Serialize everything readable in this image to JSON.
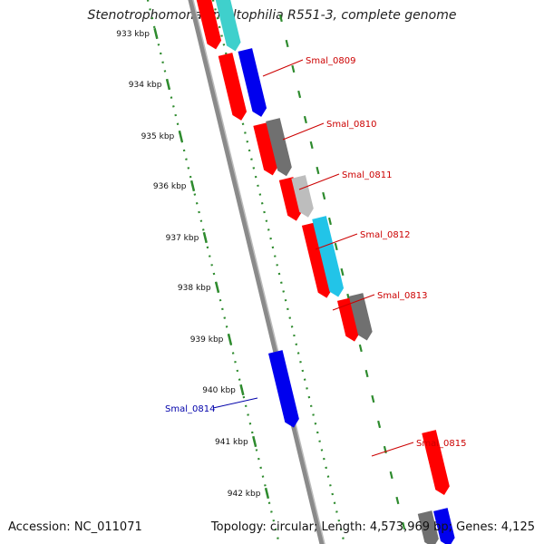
{
  "title": "Stenotrophomonas maltophilia R551-3, complete genome",
  "accession": "Accession: NC_011071",
  "summary": "Topology: circular; Length: 4,573,969 bp; Genes: 4,125",
  "ruler": {
    "ticks": [
      "933 kbp",
      "934 kbp",
      "935 kbp",
      "936 kbp",
      "937 kbp",
      "938 kbp",
      "939 kbp",
      "940 kbp",
      "941 kbp",
      "942 kbp"
    ],
    "tick_color": "#2e8b2e"
  },
  "colors": {
    "red": "#ff0000",
    "blue": "#0000ee",
    "dark_gray": "#707070",
    "light_gray": "#bdbdbd",
    "cyan": "#22c4e8",
    "teal": "#3fd0cc",
    "pink": "#ffb0b0",
    "backbone": "#8a8a8a",
    "label_red": "#cc0000",
    "label_blue": "#0000aa"
  },
  "gene_labels": [
    {
      "text": "Smal_0809",
      "color": "label_red"
    },
    {
      "text": "Smal_0810",
      "color": "label_red"
    },
    {
      "text": "Smal_0811",
      "color": "label_red"
    },
    {
      "text": "Smal_0812",
      "color": "label_red"
    },
    {
      "text": "Smal_0813",
      "color": "label_red"
    },
    {
      "text": "Smal_0814",
      "color": "label_blue"
    },
    {
      "text": "Smal_0815",
      "color": "label_red"
    }
  ]
}
